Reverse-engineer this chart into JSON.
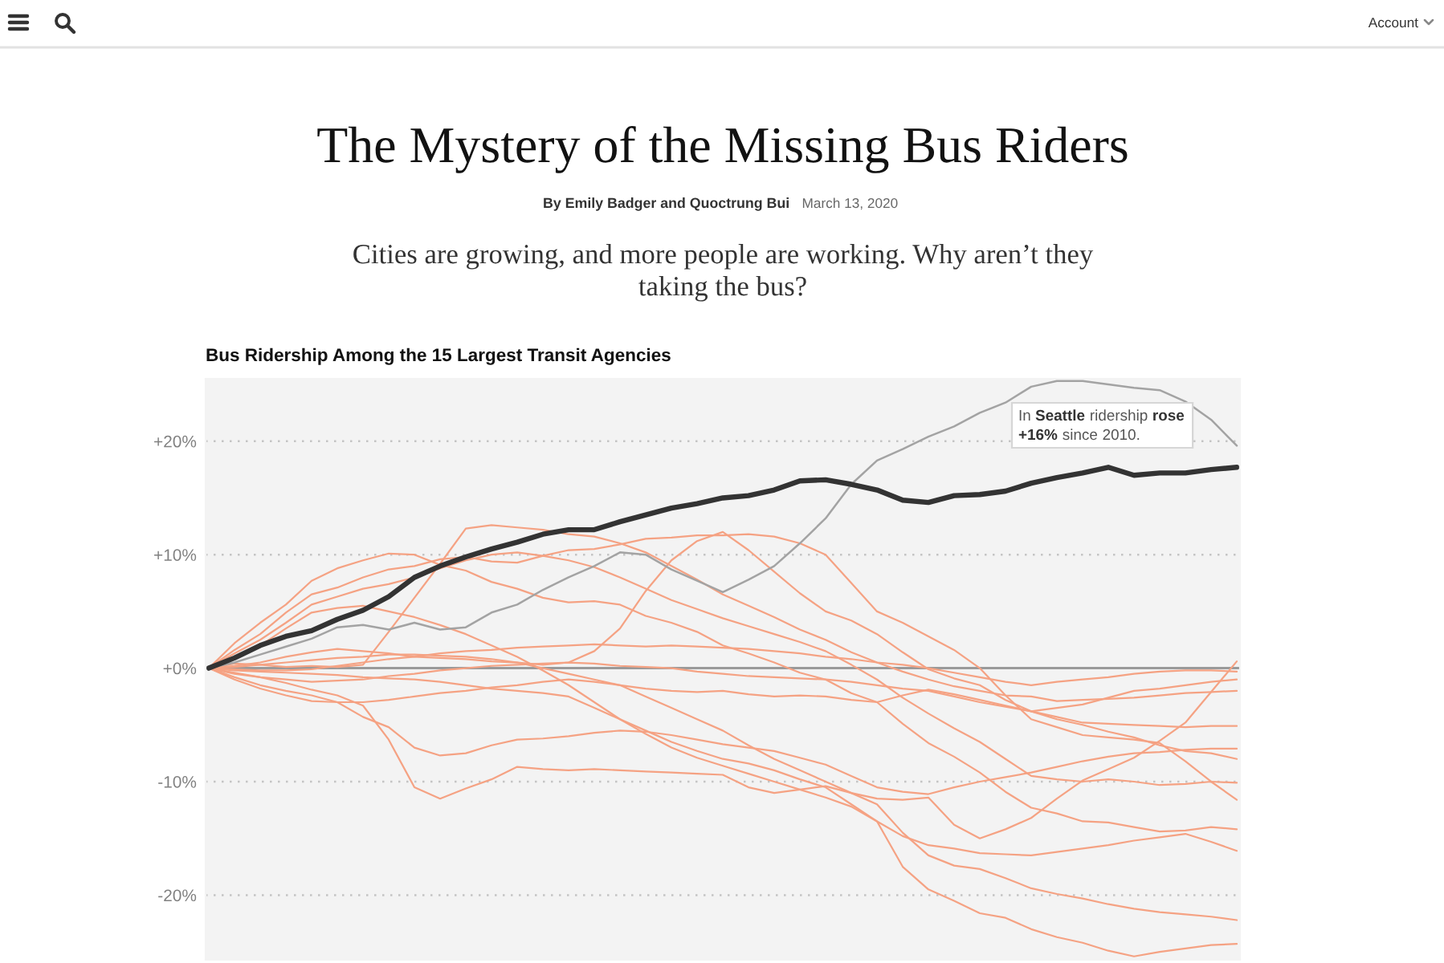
{
  "chart_data": {
    "type": "line",
    "title": "The Mystery of the Missing Bus Riders",
    "subtitle": "Cities are growing, and more people are working. Why aren’t they taking the bus?",
    "annotations": [
      "By Emily Badger and Quoctrung Bui",
      "March 13, 2020",
      "Bus Ridership Among the 15 Largest Transit Agencies",
      "Account",
      "In Seattle ridership rose +16% since 2010."
    ],
    "categories": [
      null,
      null,
      null,
      null,
      null,
      null,
      null,
      null,
      null,
      null,
      null,
      null,
      null,
      null,
      null,
      null,
      null,
      null,
      null,
      null,
      null,
      null,
      null,
      null,
      null,
      null,
      null,
      null,
      null,
      null,
      null,
      null,
      null,
      null,
      null,
      null,
      null,
      null,
      null,
      null,
      null
    ],
    "series": [
      {
        "color": "#f5a283",
        "values": [
          0,
          2.2,
          4.0,
          5.6,
          7.7,
          8.8,
          9.5,
          10.1,
          10.0,
          9.1,
          8.6,
          7.6,
          7.0,
          6.2,
          5.8,
          5.9,
          5.6,
          4.6,
          4.0,
          3.2,
          2.0,
          1.3,
          0.5,
          -0.4,
          -1.0,
          -2.2,
          -3.0,
          -4.9,
          -6.6,
          -7.8,
          -9.2,
          -10.9,
          -12.3,
          -12.8,
          -13.5,
          -13.6,
          -14.0,
          -14.4,
          -14.3,
          -14.0,
          -14.2
        ]
      },
      {
        "color": "#f5a283",
        "values": [
          0,
          1.6,
          3.0,
          4.9,
          6.5,
          7.1,
          8.0,
          8.7,
          9.0,
          9.6,
          9.8,
          9.4,
          9.3,
          9.9,
          10.4,
          10.5,
          10.9,
          11.4,
          11.5,
          11.7,
          11.7,
          11.8,
          11.6,
          11.0,
          10.0,
          7.5,
          5.0,
          4.0,
          2.8,
          1.6,
          0.0,
          -2.4,
          -4.5,
          -5.2,
          -5.9,
          -6.1,
          -6.3,
          -6.6,
          -8.2,
          -10.0,
          -11.6
        ]
      },
      {
        "color": "#f5a283",
        "values": [
          0,
          0.2,
          0.5,
          1.0,
          1.4,
          1.7,
          1.5,
          1.3,
          1.0,
          0.9,
          0.8,
          0.6,
          0.5,
          0.3,
          0.5,
          1.5,
          3.5,
          6.8,
          9.5,
          11.2,
          12.0,
          10.4,
          8.5,
          6.6,
          5.0,
          4.2,
          3.0,
          1.4,
          -0.1,
          -0.9,
          -1.5,
          -2.8,
          -3.8,
          -4.5,
          -5.0,
          -5.6,
          -6.1,
          -6.8,
          -7.3,
          -7.5,
          -8.0
        ]
      },
      {
        "color": "#f5a283",
        "values": [
          0,
          0.4,
          0.3,
          0.1,
          0.2,
          0.1,
          0.3,
          3.2,
          6.2,
          9.2,
          12.3,
          12.6,
          12.4,
          12.2,
          11.8,
          11.6,
          11.0,
          10.2,
          9.0,
          7.8,
          6.5,
          5.5,
          4.5,
          3.4,
          2.5,
          1.4,
          0.5,
          -0.3,
          -1.0,
          -1.6,
          -2.0,
          -2.4,
          -2.5,
          -2.9,
          -2.8,
          -2.7,
          -2.6,
          -2.4,
          -2.2,
          -2.1,
          -2.0
        ]
      },
      {
        "color": "#f5a283",
        "values": [
          0,
          1.3,
          2.5,
          4.0,
          5.6,
          6.3,
          7.0,
          7.4,
          8.0,
          8.8,
          9.5,
          10.0,
          10.2,
          9.9,
          9.5,
          8.9,
          8.0,
          7.0,
          6.0,
          5.2,
          4.4,
          3.7,
          3.0,
          2.3,
          1.5,
          0.3,
          -1.0,
          -2.6,
          -4.0,
          -5.3,
          -6.5,
          -8.0,
          -9.5,
          -9.8,
          -10.0,
          -9.8,
          -10.0,
          -10.3,
          -10.2,
          -10.0,
          -10.1
        ]
      },
      {
        "color": "#f5a283",
        "values": [
          0,
          1.0,
          2.0,
          3.5,
          4.9,
          5.3,
          5.5,
          5.0,
          4.5,
          3.8,
          3.0,
          2.0,
          1.0,
          -0.2,
          -1.5,
          -3.0,
          -4.5,
          -5.8,
          -7.0,
          -7.9,
          -8.6,
          -9.3,
          -10.0,
          -10.7,
          -11.4,
          -12.2,
          -13.5,
          -17.5,
          -19.5,
          -20.5,
          -21.6,
          -22.0,
          -23.0,
          -23.7,
          -24.2,
          -24.9,
          -25.4,
          -25.0,
          -24.7,
          -24.4,
          -24.3
        ]
      },
      {
        "color": "#f5a283",
        "values": [
          0,
          0.1,
          0.3,
          0.5,
          0.7,
          0.9,
          1.0,
          1.2,
          1.2,
          1.1,
          1.0,
          0.8,
          0.5,
          0.0,
          -0.5,
          -1.0,
          -1.5,
          -2.5,
          -3.5,
          -4.5,
          -5.5,
          -6.8,
          -8.0,
          -9.0,
          -10.0,
          -11.0,
          -12.0,
          -14.5,
          -16.5,
          -17.4,
          -17.7,
          -18.5,
          -19.4,
          -19.9,
          -20.3,
          -20.8,
          -21.2,
          -21.5,
          -21.7,
          -21.9,
          -22.2
        ]
      },
      {
        "color": "#f5a283",
        "values": [
          0,
          -0.2,
          -0.3,
          -0.4,
          -0.5,
          -0.6,
          -0.8,
          -0.9,
          -1.0,
          -1.2,
          -1.5,
          -1.8,
          -2.0,
          -2.2,
          -2.5,
          -3.5,
          -4.5,
          -5.5,
          -6.5,
          -7.3,
          -8.0,
          -8.4,
          -9.0,
          -9.8,
          -10.5,
          -12.0,
          -13.5,
          -14.8,
          -15.6,
          -15.9,
          -16.3,
          -16.4,
          -16.5,
          -16.2,
          -15.9,
          -15.6,
          -15.2,
          -14.9,
          -14.6,
          -15.3,
          -16.1
        ]
      },
      {
        "color": "#f5a283",
        "values": [
          0,
          -0.1,
          -0.2,
          -0.2,
          -0.1,
          0.2,
          0.5,
          0.8,
          1.0,
          1.3,
          1.5,
          1.6,
          1.8,
          1.9,
          2.0,
          2.1,
          2.0,
          1.9,
          2.0,
          1.9,
          1.8,
          1.7,
          1.5,
          1.3,
          1.0,
          0.8,
          0.5,
          0.3,
          0.0,
          -0.4,
          -0.8,
          -1.2,
          -1.5,
          -1.2,
          -1.0,
          -0.8,
          -0.5,
          -0.3,
          -0.2,
          -0.2,
          -0.3
        ]
      },
      {
        "color": "#f5a283",
        "values": [
          0,
          -0.5,
          -0.8,
          -1.0,
          -1.2,
          -1.1,
          -1.0,
          -0.7,
          -0.5,
          -0.2,
          0.0,
          0.2,
          0.3,
          0.4,
          0.5,
          0.4,
          0.2,
          0.1,
          0.0,
          -0.3,
          -0.5,
          -0.7,
          -0.8,
          -0.9,
          -1.0,
          -1.2,
          -1.5,
          -1.8,
          -2.0,
          -2.5,
          -3.0,
          -3.4,
          -3.8,
          -3.5,
          -3.2,
          -2.6,
          -2.0,
          -1.8,
          -1.5,
          -1.2,
          -1.0
        ]
      },
      {
        "color": "#f5a283",
        "values": [
          0,
          -0.8,
          -1.5,
          -2.0,
          -2.4,
          -3.0,
          -4.3,
          -5.2,
          -7.0,
          -7.7,
          -7.5,
          -6.8,
          -6.3,
          -6.2,
          -6.0,
          -5.7,
          -5.5,
          -5.6,
          -5.9,
          -6.3,
          -6.7,
          -7.0,
          -7.3,
          -7.9,
          -8.5,
          -9.5,
          -10.5,
          -10.9,
          -11.1,
          -10.5,
          -10.0,
          -9.6,
          -9.2,
          -8.7,
          -8.2,
          -7.8,
          -7.5,
          -7.4,
          -7.2,
          -7.1,
          -7.1
        ]
      },
      {
        "color": "#f5a283",
        "values": [
          0,
          -1.0,
          -1.8,
          -2.4,
          -2.9,
          -3.0,
          -3.0,
          -2.8,
          -2.5,
          -2.2,
          -2.0,
          -1.7,
          -1.5,
          -1.2,
          -1.0,
          -1.2,
          -1.5,
          -1.8,
          -2.0,
          -2.1,
          -2.0,
          -2.3,
          -2.5,
          -2.4,
          -2.5,
          -2.8,
          -3.0,
          -2.4,
          -1.9,
          -2.3,
          -2.8,
          -3.3,
          -3.8,
          -4.3,
          -4.8,
          -4.9,
          -5.0,
          -5.1,
          -5.2,
          -5.1,
          -5.1
        ]
      },
      {
        "color": "#f5a283",
        "values": [
          0,
          -0.4,
          -0.8,
          -1.3,
          -1.9,
          -2.4,
          -3.3,
          -6.3,
          -10.5,
          -11.5,
          -10.6,
          -9.8,
          -8.7,
          -8.9,
          -9.0,
          -8.9,
          -9.0,
          -9.1,
          -9.2,
          -9.3,
          -9.4,
          -10.5,
          -11.0,
          -10.7,
          -10.4,
          -11.0,
          -11.5,
          -11.6,
          -11.4,
          -13.8,
          -15.0,
          -14.2,
          -13.2,
          -11.5,
          -9.9,
          -8.9,
          -7.9,
          -6.4,
          -4.8,
          -2.1,
          0.6
        ]
      },
      {
        "color": "#a3a3a3",
        "values": [
          0,
          0.5,
          1.2,
          1.9,
          2.6,
          3.6,
          3.8,
          3.4,
          4.0,
          3.4,
          3.6,
          4.9,
          5.6,
          6.9,
          8.0,
          9.0,
          10.2,
          10.0,
          8.7,
          7.7,
          6.7,
          7.8,
          9.0,
          11.0,
          13.2,
          16.2,
          18.3,
          19.3,
          20.4,
          21.3,
          22.5,
          23.4,
          24.8,
          25.3,
          25.3,
          25.0,
          24.7,
          24.5,
          23.5,
          21.9,
          19.6
        ]
      },
      {
        "color": "#333333",
        "values": [
          0,
          0.9,
          2.0,
          2.8,
          3.3,
          4.3,
          5.1,
          6.3,
          8.0,
          9.0,
          9.8,
          10.5,
          11.1,
          11.8,
          12.2,
          12.2,
          12.9,
          13.5,
          14.1,
          14.5,
          15.0,
          15.2,
          15.7,
          16.5,
          16.6,
          16.2,
          15.7,
          14.8,
          14.6,
          15.2,
          15.3,
          15.6,
          16.3,
          16.8,
          17.2,
          17.7,
          17.0,
          17.2,
          17.2,
          17.5,
          17.7
        ]
      }
    ],
    "ylim": [
      -25.7,
      25.5
    ],
    "yticks": [
      {
        "value": 20,
        "label": "+20%"
      },
      {
        "value": 10,
        "label": "+10%"
      },
      {
        "value": 0,
        "label": "+0%"
      },
      {
        "value": -10,
        "label": "-10%"
      },
      {
        "value": -20,
        "label": "-20%"
      }
    ],
    "grid": "y",
    "ref_lines": [
      {
        "axis": "y",
        "value": 0,
        "color": "#9a9a9a"
      }
    ],
    "line_style": "solid",
    "tick_labels": "y"
  }
}
